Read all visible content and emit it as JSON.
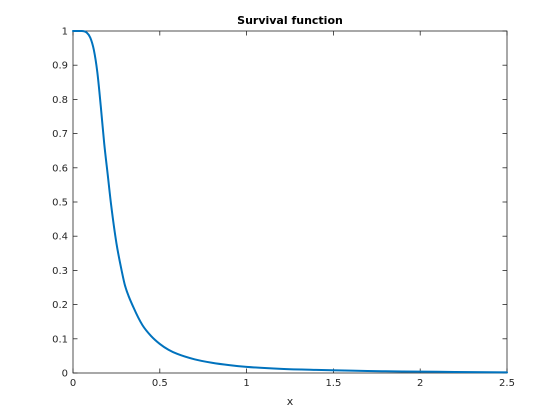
{
  "chart_data": {
    "type": "line",
    "title": "Survival function",
    "xlabel": "x",
    "ylabel": "",
    "xlim": [
      0,
      2.5
    ],
    "ylim": [
      0,
      1
    ],
    "xticks": [
      "0",
      "0.5",
      "1",
      "1.5",
      "2",
      "2.5"
    ],
    "yticks": [
      "0",
      "0.1",
      "0.2",
      "0.3",
      "0.4",
      "0.5",
      "0.6",
      "0.7",
      "0.8",
      "0.9",
      "1"
    ],
    "grid": false,
    "legend": "none",
    "colors": {
      "line": "#0072BD",
      "axes": "#262626",
      "background": "#ffffff"
    },
    "series": [
      {
        "x": [
          0,
          0.05,
          0.08,
          0.1,
          0.12,
          0.14,
          0.16,
          0.18,
          0.2,
          0.22,
          0.25,
          0.28,
          0.3,
          0.35,
          0.4,
          0.45,
          0.5,
          0.55,
          0.6,
          0.7,
          0.8,
          0.9,
          1.0,
          1.2,
          1.4,
          1.6,
          1.8,
          2.0,
          2.2,
          2.5
        ],
        "y": [
          1.0,
          1.0,
          0.995,
          0.98,
          0.945,
          0.88,
          0.78,
          0.67,
          0.58,
          0.49,
          0.38,
          0.3,
          0.255,
          0.19,
          0.14,
          0.108,
          0.085,
          0.068,
          0.056,
          0.04,
          0.03,
          0.023,
          0.018,
          0.012,
          0.009,
          0.007,
          0.005,
          0.004,
          0.003,
          0.002
        ]
      }
    ]
  }
}
